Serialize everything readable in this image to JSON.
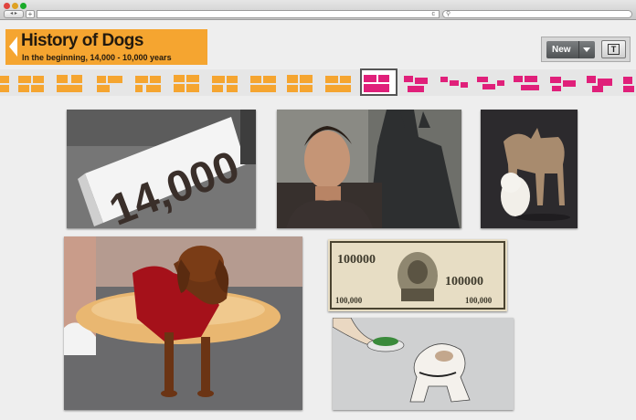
{
  "browser": {
    "nav_label": "◂ ▸",
    "add_label": "+",
    "reload_label": "c",
    "search_icon": "🔍"
  },
  "header": {
    "title": "History of Dogs",
    "subtitle": "In the beginning, 14,000 - 10,000 years"
  },
  "toolbar": {
    "new_label": "New",
    "text_label": "T"
  },
  "layout_strip": {
    "colors": {
      "orange": "#f5a530",
      "magenta": "#e0207a",
      "selected_border": "#555555"
    },
    "selected_index": 9
  },
  "photos": {
    "sign_text": "14,000",
    "bill_text": "100000",
    "bill_corner": "100,000"
  }
}
